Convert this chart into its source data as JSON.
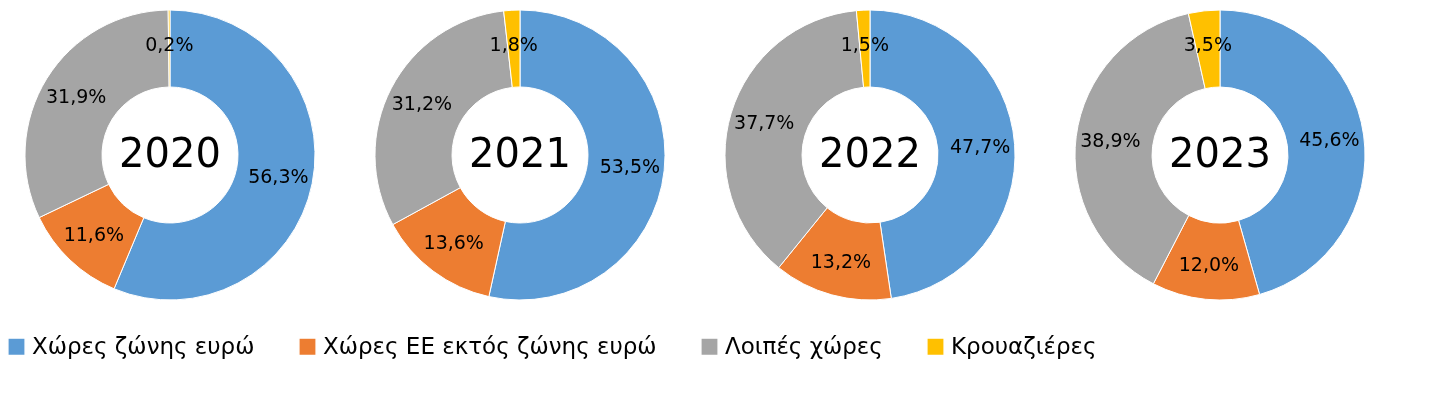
{
  "chart_data": [
    {
      "type": "donut",
      "title": "2020",
      "categories": [
        "Χώρες ζώνης ευρώ",
        "Χώρες ΕΕ εκτός ζώνης ευρώ",
        "Λοιπές χώρες",
        "Κρουαζιέρες"
      ],
      "values": [
        56.3,
        11.6,
        31.9,
        0.2
      ],
      "value_labels": [
        "56,3%",
        "11,6%",
        "31,9%",
        "0,2%"
      ],
      "colors": [
        "#5b9bd5",
        "#ed7d31",
        "#a5a5a5",
        "#ffc000"
      ],
      "legend": "bottom"
    },
    {
      "type": "donut",
      "title": "2021",
      "categories": [
        null,
        null,
        null,
        null
      ],
      "values": [
        53.5,
        13.6,
        31.2,
        1.8
      ],
      "value_labels": [
        "53,5%",
        "13,6%",
        "31,2%",
        "1,8%"
      ],
      "colors": [
        "#5b9bd5",
        "#ed7d31",
        "#a5a5a5",
        "#ffc000"
      ]
    },
    {
      "type": "donut",
      "title": "2022",
      "categories": [
        null,
        null,
        null,
        null
      ],
      "values": [
        47.7,
        13.2,
        37.7,
        1.5
      ],
      "value_labels": [
        "47,7%",
        "13,2%",
        "37,7%",
        "1,5%"
      ],
      "colors": [
        "#5b9bd5",
        "#ed7d31",
        "#a5a5a5",
        "#ffc000"
      ]
    },
    {
      "type": "donut",
      "title": "2023",
      "categories": [
        null,
        null,
        null,
        null
      ],
      "values": [
        45.6,
        12.0,
        38.9,
        3.5
      ],
      "value_labels": [
        "45,6%",
        "12,0%",
        "38,9%",
        "3,5%"
      ],
      "colors": [
        "#5b9bd5",
        "#ed7d31",
        "#a5a5a5",
        "#ffc000"
      ]
    }
  ]
}
